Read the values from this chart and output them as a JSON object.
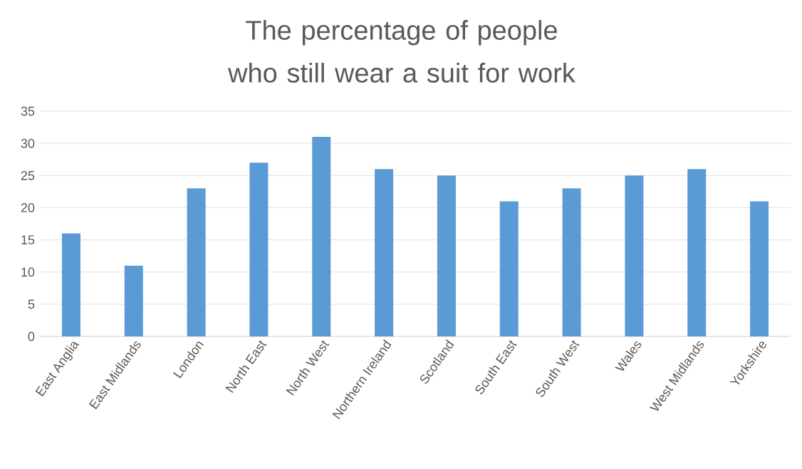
{
  "chart_data": {
    "type": "bar",
    "title": "The percentage of people who still wear a suit for work",
    "categories": [
      "East Anglia",
      "East Midlands",
      "London",
      "North East",
      "North West",
      "Northern Ireland",
      "Scotland",
      "South East",
      "South West",
      "Wales",
      "West Midlands",
      "Yorkshire"
    ],
    "values": [
      16,
      11,
      23,
      27,
      31,
      26,
      25,
      21,
      23,
      25,
      26,
      21
    ],
    "color": "#5b9bd5",
    "ylim": [
      0,
      35
    ],
    "yticks": [
      0,
      5,
      10,
      15,
      20,
      25,
      30,
      35
    ],
    "grid": "y"
  }
}
